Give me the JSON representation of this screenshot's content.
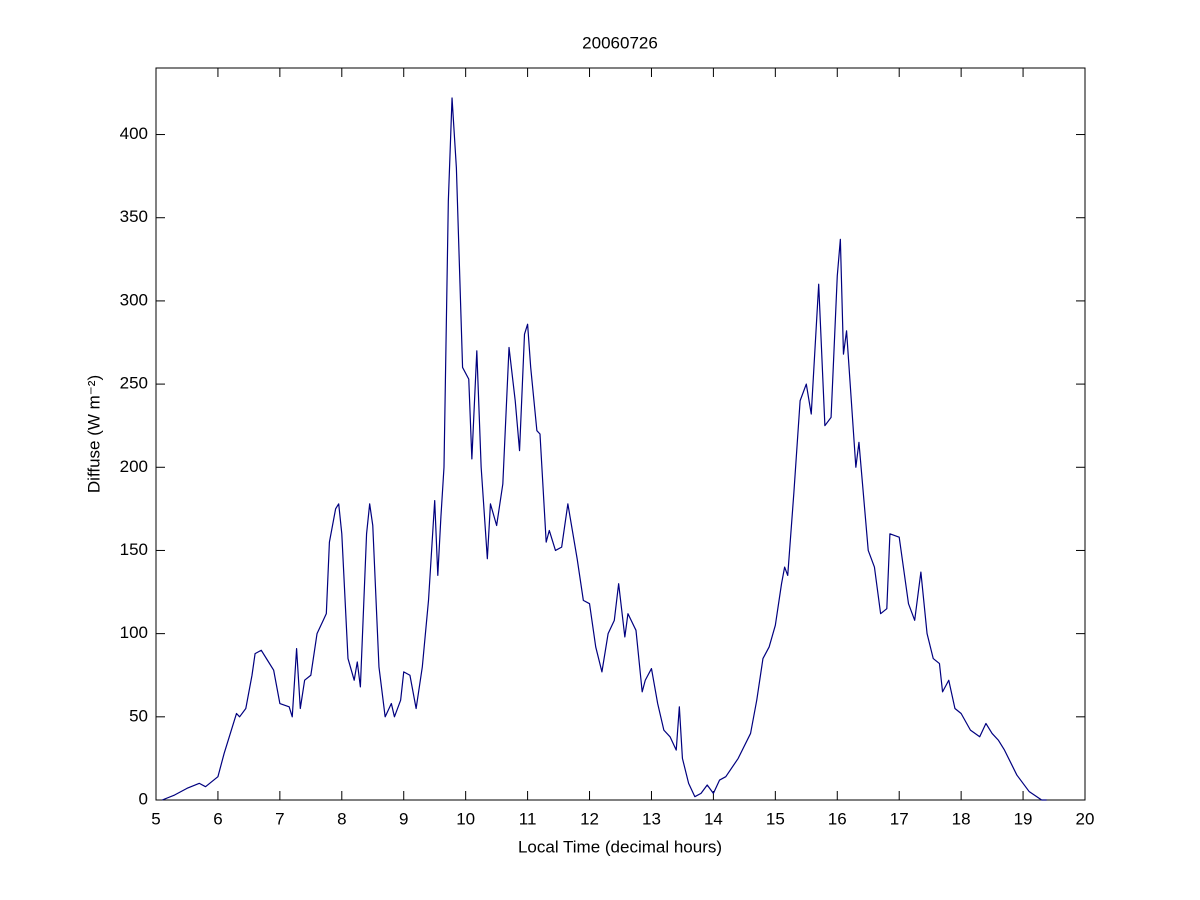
{
  "chart_data": {
    "type": "line",
    "title": "20060726",
    "xlabel": "Local Time (decimal hours)",
    "ylabel": "Diffuse (W m⁻²)",
    "xlim": [
      5,
      20
    ],
    "xticks": [
      5,
      6,
      7,
      8,
      9,
      10,
      11,
      12,
      13,
      14,
      15,
      16,
      17,
      18,
      19,
      20
    ],
    "ylim": [
      0,
      440
    ],
    "yticks": [
      0,
      50,
      100,
      150,
      200,
      250,
      300,
      350,
      400
    ],
    "series": [
      {
        "color": "#00007f",
        "x": [
          5.1,
          5.3,
          5.5,
          5.7,
          5.8,
          6.0,
          6.1,
          6.2,
          6.3,
          6.35,
          6.45,
          6.55,
          6.6,
          6.7,
          6.8,
          6.9,
          7.0,
          7.15,
          7.2,
          7.27,
          7.33,
          7.4,
          7.5,
          7.6,
          7.7,
          7.75,
          7.8,
          7.9,
          7.95,
          8.0,
          8.1,
          8.2,
          8.25,
          8.3,
          8.4,
          8.45,
          8.5,
          8.6,
          8.7,
          8.8,
          8.85,
          8.95,
          9.0,
          9.1,
          9.2,
          9.3,
          9.4,
          9.5,
          9.55,
          9.6,
          9.65,
          9.72,
          9.78,
          9.85,
          9.95,
          10.05,
          10.1,
          10.18,
          10.25,
          10.35,
          10.4,
          10.5,
          10.6,
          10.7,
          10.8,
          10.87,
          10.95,
          11.0,
          11.05,
          11.15,
          11.2,
          11.3,
          11.35,
          11.45,
          11.55,
          11.65,
          11.8,
          11.9,
          12.0,
          12.1,
          12.2,
          12.3,
          12.4,
          12.47,
          12.57,
          12.62,
          12.75,
          12.85,
          12.9,
          13.0,
          13.1,
          13.2,
          13.3,
          13.4,
          13.45,
          13.5,
          13.6,
          13.7,
          13.8,
          13.9,
          14.0,
          14.1,
          14.2,
          14.4,
          14.6,
          14.7,
          14.8,
          14.9,
          15.0,
          15.1,
          15.15,
          15.2,
          15.3,
          15.4,
          15.5,
          15.58,
          15.7,
          15.8,
          15.9,
          16.0,
          16.05,
          16.1,
          16.15,
          16.3,
          16.35,
          16.5,
          16.6,
          16.7,
          16.8,
          16.85,
          17.0,
          17.15,
          17.25,
          17.35,
          17.45,
          17.55,
          17.65,
          17.7,
          17.8,
          17.9,
          18.0,
          18.15,
          18.3,
          18.4,
          18.5,
          18.6,
          18.7,
          18.9,
          19.1,
          19.3,
          19.38
        ],
        "values": [
          0,
          3,
          7,
          10,
          8,
          14,
          28,
          40,
          52,
          50,
          55,
          75,
          88,
          90,
          84,
          78,
          58,
          56,
          50,
          91,
          55,
          72,
          75,
          100,
          108,
          112,
          155,
          175,
          178,
          160,
          85,
          72,
          83,
          68,
          160,
          178,
          165,
          80,
          50,
          58,
          50,
          60,
          77,
          75,
          55,
          80,
          120,
          180,
          135,
          170,
          200,
          360,
          422,
          380,
          260,
          253,
          205,
          270,
          200,
          145,
          178,
          165,
          190,
          272,
          240,
          210,
          280,
          286,
          260,
          222,
          220,
          155,
          162,
          150,
          152,
          178,
          145,
          120,
          118,
          92,
          77,
          100,
          108,
          130,
          98,
          112,
          102,
          65,
          72,
          79,
          58,
          42,
          38,
          30,
          56,
          25,
          10,
          2,
          4,
          9,
          4,
          12,
          14,
          25,
          40,
          60,
          85,
          92,
          105,
          130,
          140,
          135,
          185,
          240,
          250,
          232,
          310,
          225,
          230,
          315,
          337,
          268,
          282,
          200,
          215,
          150,
          140,
          112,
          115,
          160,
          158,
          118,
          108,
          137,
          100,
          85,
          82,
          65,
          72,
          55,
          52,
          42,
          38,
          46,
          40,
          36,
          30,
          15,
          5,
          0,
          0
        ]
      }
    ]
  }
}
